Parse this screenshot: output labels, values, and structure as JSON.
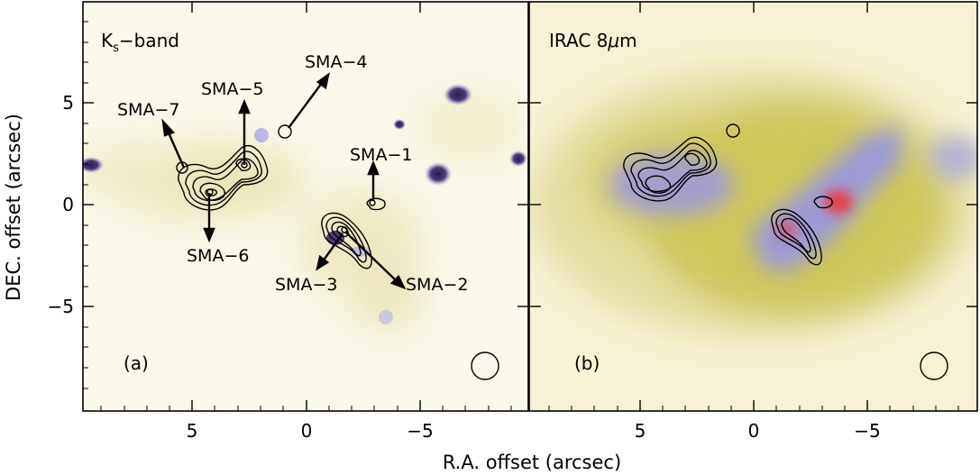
{
  "figure": {
    "xlabel": "R.A. offset (arcsec)",
    "ylabel": "DEC. offset (arcsec)",
    "x_ticks": [
      "5",
      "0",
      "−5"
    ],
    "y_ticks": [
      "5",
      "0",
      "−5"
    ]
  },
  "panels": [
    {
      "band_label": {
        "main": "K",
        "sub": "s",
        "rest": "−band"
      },
      "tag": "(a)",
      "sources": [
        "SMA−7",
        "SMA−5",
        "SMA−4",
        "SMA−1",
        "SMA−6",
        "SMA−3",
        "SMA−2"
      ]
    },
    {
      "band_label": {
        "main": "IRAC 8",
        "mu": "μ",
        "rest": "m"
      },
      "tag": "(b)"
    }
  ],
  "colors": {
    "background_yellow": "#f6f1d8",
    "olive": "#c9c24a",
    "lavender": "#8f8fe0",
    "red": "#e8484e",
    "star": "#3a2a5a"
  }
}
